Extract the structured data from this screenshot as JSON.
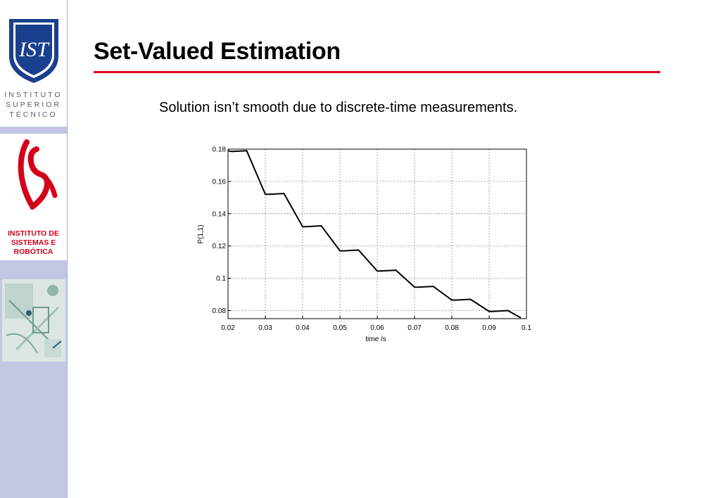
{
  "sidebar": {
    "ist_text": [
      "INSTITUTO",
      "SUPERIOR",
      "TÉCNICO"
    ],
    "isr_text": [
      "INSTITUTO DE",
      "SISTEMAS E",
      "ROBÓTICA"
    ],
    "colors": {
      "background": "#c2c6e3",
      "ist_blue": "#1a3f8f",
      "isr_red": "#d4001a"
    }
  },
  "slide": {
    "title": "Set-Valued Estimation",
    "subtitle": "Solution isn’t smooth due to discrete-time measurements.",
    "accent_color": "#e2001a"
  },
  "chart_data": {
    "type": "line",
    "xlabel": "time /s",
    "ylabel": "P(1,1)",
    "xlim": [
      0.02,
      0.1
    ],
    "ylim": [
      0.075,
      0.18
    ],
    "grid": true,
    "x_ticks": [
      "0.02",
      "0.03",
      "0.04",
      "0.05",
      "0.06",
      "0.07",
      "0.08",
      "0.09",
      "0.1"
    ],
    "y_ticks": [
      "0.08",
      "0.1",
      "0.12",
      "0.14",
      "0.16",
      "0.18"
    ],
    "series": [
      {
        "x": [
          0.02,
          0.021,
          0.025,
          0.03,
          0.031,
          0.035,
          0.04,
          0.041,
          0.045,
          0.05,
          0.051,
          0.055,
          0.06,
          0.061,
          0.065,
          0.07,
          0.071,
          0.075,
          0.08,
          0.081,
          0.085,
          0.09,
          0.091,
          0.095,
          0.0985
        ],
        "y": [
          0.179,
          0.1785,
          0.179,
          0.152,
          0.152,
          0.1525,
          0.132,
          0.132,
          0.1325,
          0.117,
          0.117,
          0.1175,
          0.1045,
          0.1045,
          0.105,
          0.0945,
          0.0945,
          0.095,
          0.0865,
          0.0865,
          0.087,
          0.0795,
          0.0795,
          0.08,
          0.0755
        ]
      }
    ]
  }
}
